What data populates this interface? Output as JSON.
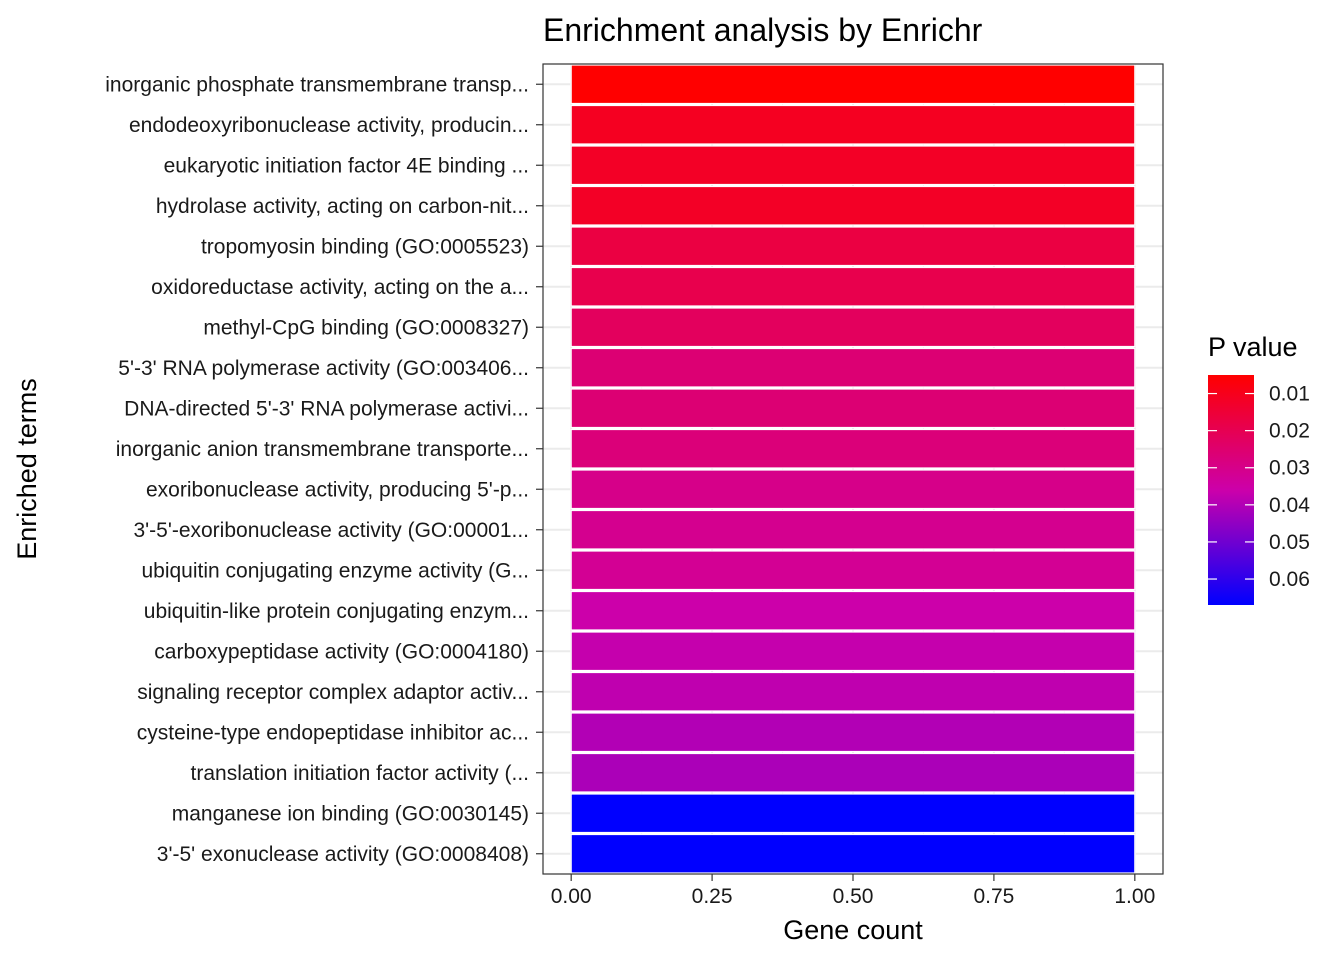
{
  "chart_data": {
    "type": "bar",
    "orientation": "horizontal",
    "title": "Enrichment analysis by Enrichr",
    "xlabel": "Gene count",
    "ylabel": "Enriched terms",
    "xlim": [
      -0.05,
      1.05
    ],
    "xticks": [
      0,
      0.25,
      0.5,
      0.75,
      1
    ],
    "xtick_labels": [
      "0.00",
      "0.25",
      "0.50",
      "0.75",
      "1.00"
    ],
    "grid": true,
    "legend": {
      "title": "P value",
      "position": "right",
      "range": [
        0.005,
        0.067
      ],
      "ticks": [
        0.01,
        0.02,
        0.03,
        0.04,
        0.05,
        0.06
      ],
      "tick_labels": [
        "0.01",
        "0.02",
        "0.03",
        "0.04",
        "0.05",
        "0.06"
      ],
      "low_color": "#ff0000",
      "high_color": "#0000ff"
    },
    "bars": [
      {
        "term": "inorganic phosphate transmembrane transp...",
        "value": 1,
        "pvalue": 0.005
      },
      {
        "term": "endodeoxyribonuclease activity, producin...",
        "value": 1,
        "pvalue": 0.011
      },
      {
        "term": "eukaryotic initiation factor 4E binding ...",
        "value": 1,
        "pvalue": 0.012
      },
      {
        "term": "hydrolase activity, acting on carbon-nit...",
        "value": 1,
        "pvalue": 0.012
      },
      {
        "term": "tropomyosin binding (GO:0005523)",
        "value": 1,
        "pvalue": 0.017
      },
      {
        "term": "oxidoreductase activity, acting on the a...",
        "value": 1,
        "pvalue": 0.019
      },
      {
        "term": "methyl-CpG binding (GO:0008327)",
        "value": 1,
        "pvalue": 0.022
      },
      {
        "term": "5'-3' RNA polymerase activity (GO:003406...",
        "value": 1,
        "pvalue": 0.026
      },
      {
        "term": "DNA-directed 5'-3' RNA polymerase activi...",
        "value": 1,
        "pvalue": 0.026
      },
      {
        "term": "inorganic anion transmembrane transporte...",
        "value": 1,
        "pvalue": 0.027
      },
      {
        "term": "exoribonuclease activity, producing 5'-p...",
        "value": 1,
        "pvalue": 0.03
      },
      {
        "term": "3'-5'-exoribonuclease activity (GO:00001...",
        "value": 1,
        "pvalue": 0.031
      },
      {
        "term": "ubiquitin conjugating enzyme activity (G...",
        "value": 1,
        "pvalue": 0.032
      },
      {
        "term": "ubiquitin-like protein conjugating enzym...",
        "value": 1,
        "pvalue": 0.036
      },
      {
        "term": "carboxypeptidase activity (GO:0004180)",
        "value": 1,
        "pvalue": 0.037
      },
      {
        "term": "signaling receptor complex adaptor activ...",
        "value": 1,
        "pvalue": 0.038
      },
      {
        "term": "cysteine-type endopeptidase inhibitor ac...",
        "value": 1,
        "pvalue": 0.04
      },
      {
        "term": "translation initiation factor activity (...",
        "value": 1,
        "pvalue": 0.041
      },
      {
        "term": "manganese ion binding (GO:0030145)",
        "value": 1,
        "pvalue": 0.067
      },
      {
        "term": "3'-5' exonuclease activity (GO:0008408)",
        "value": 1,
        "pvalue": 0.067
      }
    ]
  }
}
